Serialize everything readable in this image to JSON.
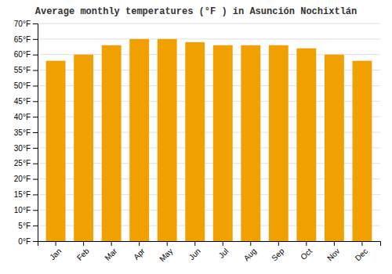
{
  "chart_data": {
    "type": "bar",
    "title": "Average monthly temperatures (°F ) in Asunción Nochixtlán",
    "categories": [
      "Jan",
      "Feb",
      "Mar",
      "Apr",
      "May",
      "Jun",
      "Jul",
      "Aug",
      "Sep",
      "Oct",
      "Nov",
      "Dec"
    ],
    "values": [
      58,
      60,
      63,
      65,
      65,
      64,
      63,
      63,
      63,
      62,
      60,
      58
    ],
    "color": "#F0A000",
    "ylim": [
      0,
      70
    ],
    "yticks": [
      {
        "value": 0,
        "label": "0°F"
      },
      {
        "value": 5,
        "label": "5°F"
      },
      {
        "value": 10,
        "label": "10°F"
      },
      {
        "value": 15,
        "label": "15°F"
      },
      {
        "value": 20,
        "label": "20°F"
      },
      {
        "value": 25,
        "label": "25°F"
      },
      {
        "value": 30,
        "label": "30°F"
      },
      {
        "value": 35,
        "label": "35°F"
      },
      {
        "value": 40,
        "label": "40°F"
      },
      {
        "value": 45,
        "label": "45°F"
      },
      {
        "value": 50,
        "label": "50°F"
      },
      {
        "value": 55,
        "label": "55°F"
      },
      {
        "value": 60,
        "label": "60°F"
      },
      {
        "value": 65,
        "label": "65°F"
      },
      {
        "value": 70,
        "label": "70°F"
      }
    ],
    "grid": true
  }
}
